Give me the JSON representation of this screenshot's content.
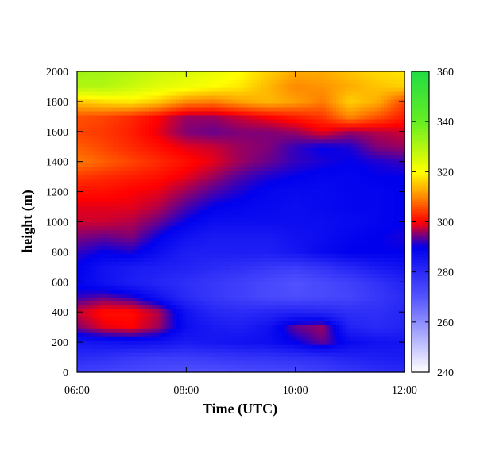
{
  "chart_data": {
    "type": "heatmap",
    "title": "",
    "xlabel": "Time (UTC)",
    "ylabel": "height (m)",
    "x_ticks": [
      "06:00",
      "08:00",
      "10:00",
      "12:00"
    ],
    "y_ticks": [
      "0",
      "200",
      "400",
      "600",
      "800",
      "1000",
      "1200",
      "1400",
      "1600",
      "1800",
      "2000"
    ],
    "colorbar_ticks": [
      "240",
      "260",
      "280",
      "300",
      "320",
      "340",
      "360"
    ],
    "xlim": [
      6,
      12
    ],
    "ylim": [
      0,
      2000
    ],
    "zlim": [
      240,
      360
    ],
    "grid": false,
    "colorbar_placement": "right",
    "colormap": [
      {
        "value": 240,
        "color": "#ffffff"
      },
      {
        "value": 270,
        "color": "#5555ff"
      },
      {
        "value": 290,
        "color": "#0000ee"
      },
      {
        "value": 300,
        "color": "#ff0000"
      },
      {
        "value": 310,
        "color": "#ff8800"
      },
      {
        "value": 320,
        "color": "#ffff00"
      },
      {
        "value": 340,
        "color": "#66ee22"
      },
      {
        "value": 360,
        "color": "#22dd44"
      }
    ],
    "x": [
      6.0,
      6.5,
      7.0,
      7.5,
      8.0,
      8.5,
      9.0,
      9.5,
      10.0,
      10.5,
      11.0,
      11.5,
      12.0
    ],
    "y": [
      0,
      100,
      200,
      300,
      400,
      500,
      600,
      700,
      800,
      900,
      1000,
      1100,
      1200,
      1300,
      1400,
      1500,
      1600,
      1700,
      1800,
      1900,
      2000
    ],
    "z": [
      [
        275,
        274,
        273,
        272,
        271,
        271,
        272,
        273,
        273,
        275,
        277,
        279,
        280
      ],
      [
        280,
        279,
        277,
        276,
        276,
        277,
        278,
        278,
        279,
        280,
        282,
        283,
        284
      ],
      [
        285,
        286,
        287,
        286,
        284,
        285,
        286,
        287,
        290,
        294,
        288,
        286,
        285
      ],
      [
        295,
        299,
        300,
        296,
        287,
        284,
        283,
        286,
        294,
        296,
        282,
        280,
        282
      ],
      [
        298,
        301,
        301,
        297,
        286,
        281,
        280,
        281,
        282,
        281,
        279,
        279,
        281
      ],
      [
        292,
        294,
        292,
        286,
        280,
        277,
        275,
        273,
        272,
        273,
        274,
        277,
        280
      ],
      [
        289,
        286,
        283,
        281,
        279,
        277,
        275,
        273,
        271,
        273,
        275,
        278,
        282
      ],
      [
        290,
        286,
        284,
        283,
        282,
        280,
        279,
        277,
        276,
        278,
        281,
        284,
        286
      ],
      [
        292,
        290,
        291,
        287,
        283,
        283,
        283,
        283,
        285,
        288,
        290,
        290,
        290
      ],
      [
        295,
        294,
        295,
        290,
        286,
        284,
        284,
        284,
        286,
        287,
        289,
        290,
        291
      ],
      [
        298,
        298,
        297,
        294,
        290,
        287,
        287,
        287,
        287,
        287,
        288,
        289,
        290
      ],
      [
        299,
        299,
        299,
        297,
        293,
        290,
        289,
        288,
        287,
        288,
        289,
        289,
        290
      ],
      [
        301,
        301,
        300,
        299,
        296,
        293,
        291,
        289,
        288,
        288,
        289,
        289,
        290
      ],
      [
        304,
        303,
        302,
        301,
        299,
        296,
        293,
        291,
        290,
        289,
        289,
        290,
        290
      ],
      [
        309,
        307,
        305,
        303,
        301,
        299,
        296,
        294,
        292,
        291,
        290,
        291,
        292
      ],
      [
        307,
        305,
        303,
        301,
        299,
        298,
        296,
        295,
        292,
        290,
        291,
        295,
        296
      ],
      [
        305,
        304,
        302,
        299,
        295,
        294,
        295,
        295,
        296,
        299,
        296,
        297,
        298
      ],
      [
        306,
        305,
        303,
        300,
        296,
        296,
        298,
        300,
        302,
        304,
        310,
        306,
        302
      ],
      [
        315,
        317,
        318,
        315,
        310,
        309,
        312,
        314,
        312,
        309,
        316,
        313,
        305
      ],
      [
        330,
        330,
        327,
        324,
        322,
        320,
        318,
        314,
        310,
        311,
        313,
        315,
        316
      ],
      [
        333,
        332,
        330,
        327,
        325,
        323,
        320,
        316,
        313,
        313,
        315,
        317,
        318
      ]
    ]
  }
}
